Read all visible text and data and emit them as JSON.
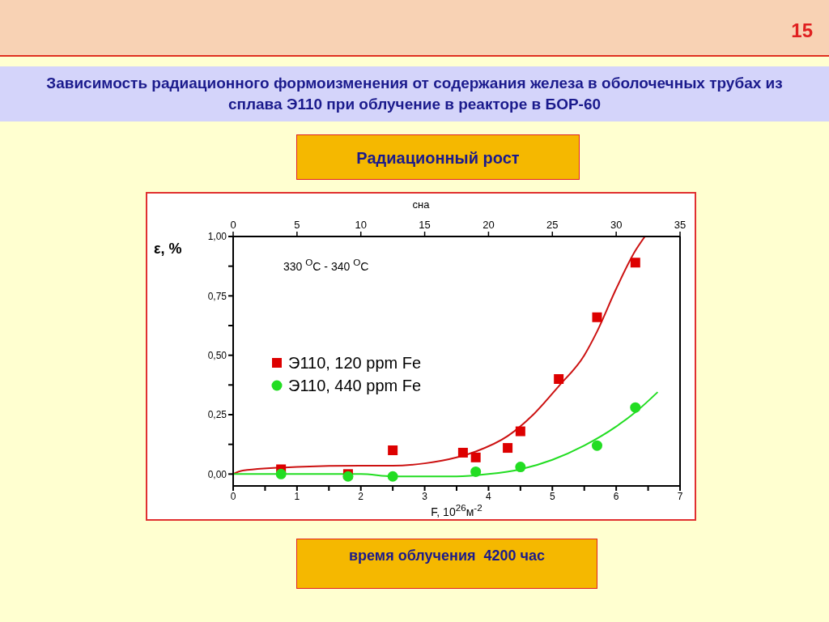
{
  "chart_data": {
    "type": "scatter",
    "title": "Зависимость радиационного формоизменения от содержания железа в оболочечных трубах  из сплава Э110 при облучение в реакторе в БОР-60",
    "subtitle": "Радиационный рост",
    "xlabel": "F, 10$^{26}$м$^{-2}$",
    "ylabel": "ε, %",
    "x2label": "сна",
    "annotations": [
      "330 $^{O}$C - 340 $^{O}$C",
      "время облучения  4200 час",
      "15"
    ],
    "xlim": [
      0,
      7
    ],
    "xticks": [
      0,
      {
        "value": 0.5,
        "label": null
      },
      1,
      {
        "value": 1.5,
        "label": null
      },
      2,
      {
        "value": 2.5,
        "label": null
      },
      3,
      {
        "value": 3.5,
        "label": null
      },
      4,
      {
        "value": 4.5,
        "label": null
      },
      5,
      {
        "value": 5.5,
        "label": null
      },
      6,
      {
        "value": 6.5,
        "label": null
      },
      7
    ],
    "x2lim": [
      0,
      35
    ],
    "x2ticks": [
      0,
      5,
      10,
      15,
      20,
      25,
      30,
      35
    ],
    "ylim": [
      -0.05,
      1
    ],
    "yticks": [
      {
        "value": 0,
        "label": "0,00"
      },
      {
        "value": 0.125,
        "label": null
      },
      {
        "value": 0.25,
        "label": "0,25"
      },
      {
        "value": 0.375,
        "label": null
      },
      {
        "value": 0.5,
        "label": "0,50"
      },
      {
        "value": 0.625,
        "label": null
      },
      {
        "value": 0.75,
        "label": "0,75"
      },
      {
        "value": 0.875,
        "label": null
      },
      {
        "value": 1,
        "label": "1,00"
      }
    ],
    "legend": "left",
    "grid": false,
    "series": [
      {
        "name": "Э110, 120 ppm Fe",
        "marker": "square",
        "color": "#dd0000",
        "x": [
          0.75,
          1.8,
          2.5,
          3.6,
          3.8,
          4.3,
          4.5,
          5.1,
          5.7,
          6.3
        ],
        "values": [
          0.02,
          0.0,
          0.1,
          0.09,
          0.07,
          0.11,
          0.18,
          0.4,
          0.66,
          0.89
        ]
      },
      {
        "name": "Э110, 440 ppm Fe",
        "marker": "circle",
        "color": "#22dd22",
        "x": [
          0.75,
          1.8,
          2.5,
          3.8,
          4.5,
          5.7,
          6.3
        ],
        "values": [
          0.0,
          -0.01,
          -0.01,
          0.01,
          0.03,
          0.12,
          0.28
        ]
      },
      {
        "type": "line",
        "color": "#cc1111",
        "x": [
          0,
          0.15,
          1,
          2,
          2.5,
          3,
          3.5,
          3.8,
          4.3,
          4.7,
          5.1,
          5.5,
          5.7,
          6,
          6.3,
          6.45
        ],
        "values": [
          0,
          0.015,
          0.03,
          0.035,
          0.035,
          0.045,
          0.07,
          0.095,
          0.16,
          0.25,
          0.37,
          0.5,
          0.6,
          0.78,
          0.94,
          1.0
        ]
      },
      {
        "type": "line",
        "color": "#22dd22",
        "x": [
          0,
          1,
          2,
          2.5,
          3,
          3.5,
          4,
          4.5,
          5,
          5.5,
          6,
          6.3,
          6.65
        ],
        "values": [
          0,
          0,
          0,
          -0.01,
          -0.01,
          -0.01,
          0,
          0.02,
          0.06,
          0.12,
          0.2,
          0.26,
          0.345
        ]
      }
    ]
  }
}
